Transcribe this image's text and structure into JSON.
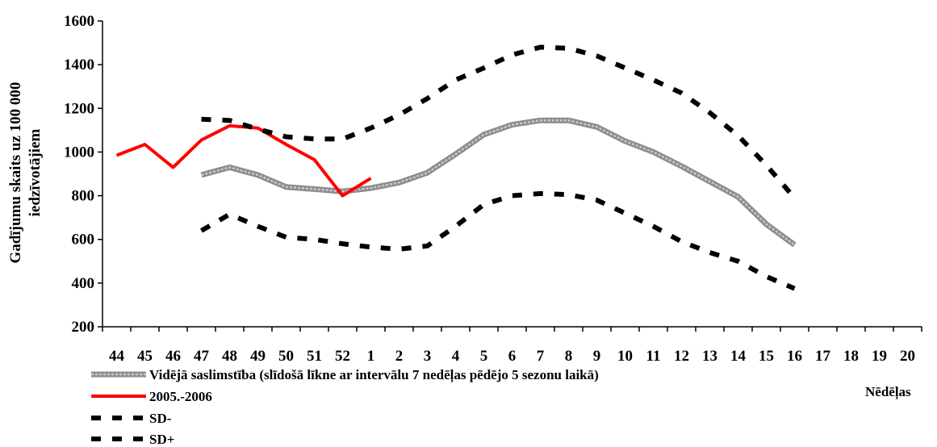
{
  "chart_data": {
    "type": "line",
    "ylabel_line1": "Gadījumu skaits uz 100 000",
    "ylabel_line2": "iedzīvotājiem",
    "xlabel": "Nēdēļas",
    "ylim": [
      200,
      1600
    ],
    "yticks": [
      200,
      400,
      600,
      800,
      1000,
      1200,
      1400,
      1600
    ],
    "categories": [
      "44",
      "45",
      "46",
      "47",
      "48",
      "49",
      "50",
      "51",
      "52",
      "1",
      "2",
      "3",
      "4",
      "5",
      "6",
      "7",
      "8",
      "9",
      "10",
      "11",
      "12",
      "13",
      "14",
      "15",
      "16",
      "17",
      "18",
      "19",
      "20"
    ],
    "grid": false,
    "series": [
      {
        "name": "Vidējā saslimstība (slīdošā līkne ar intervālu 7 nedēļas pēdējo 5 sezonu laikā)",
        "style": "gray-band",
        "color": "#9a9a9a",
        "values": [
          null,
          null,
          null,
          895,
          930,
          895,
          840,
          830,
          820,
          835,
          860,
          905,
          990,
          1080,
          1125,
          1145,
          1145,
          1115,
          1050,
          1000,
          935,
          865,
          795,
          670,
          575,
          null,
          null,
          null,
          null
        ]
      },
      {
        "name": "2005.-2006",
        "style": "solid",
        "color": "#ff0000",
        "values": [
          985,
          1035,
          930,
          1055,
          1120,
          1110,
          1035,
          965,
          800,
          880,
          null,
          null,
          null,
          null,
          null,
          null,
          null,
          null,
          null,
          null,
          null,
          null,
          null,
          null,
          null,
          null,
          null,
          null,
          null
        ]
      },
      {
        "name": "SD-",
        "style": "dashed",
        "color": "#000000",
        "values": [
          null,
          null,
          null,
          1150,
          1145,
          1105,
          1070,
          1060,
          1060,
          1110,
          1170,
          1245,
          1330,
          1385,
          1445,
          1480,
          1475,
          1440,
          1385,
          1330,
          1270,
          1180,
          1075,
          940,
          790,
          null,
          null,
          null,
          null
        ]
      },
      {
        "name": "SD+",
        "style": "dashed",
        "color": "#000000",
        "values": [
          null,
          null,
          null,
          640,
          715,
          660,
          610,
          600,
          580,
          565,
          555,
          570,
          660,
          760,
          800,
          810,
          805,
          780,
          720,
          660,
          590,
          540,
          500,
          430,
          375,
          null,
          null,
          null,
          null
        ]
      }
    ]
  }
}
